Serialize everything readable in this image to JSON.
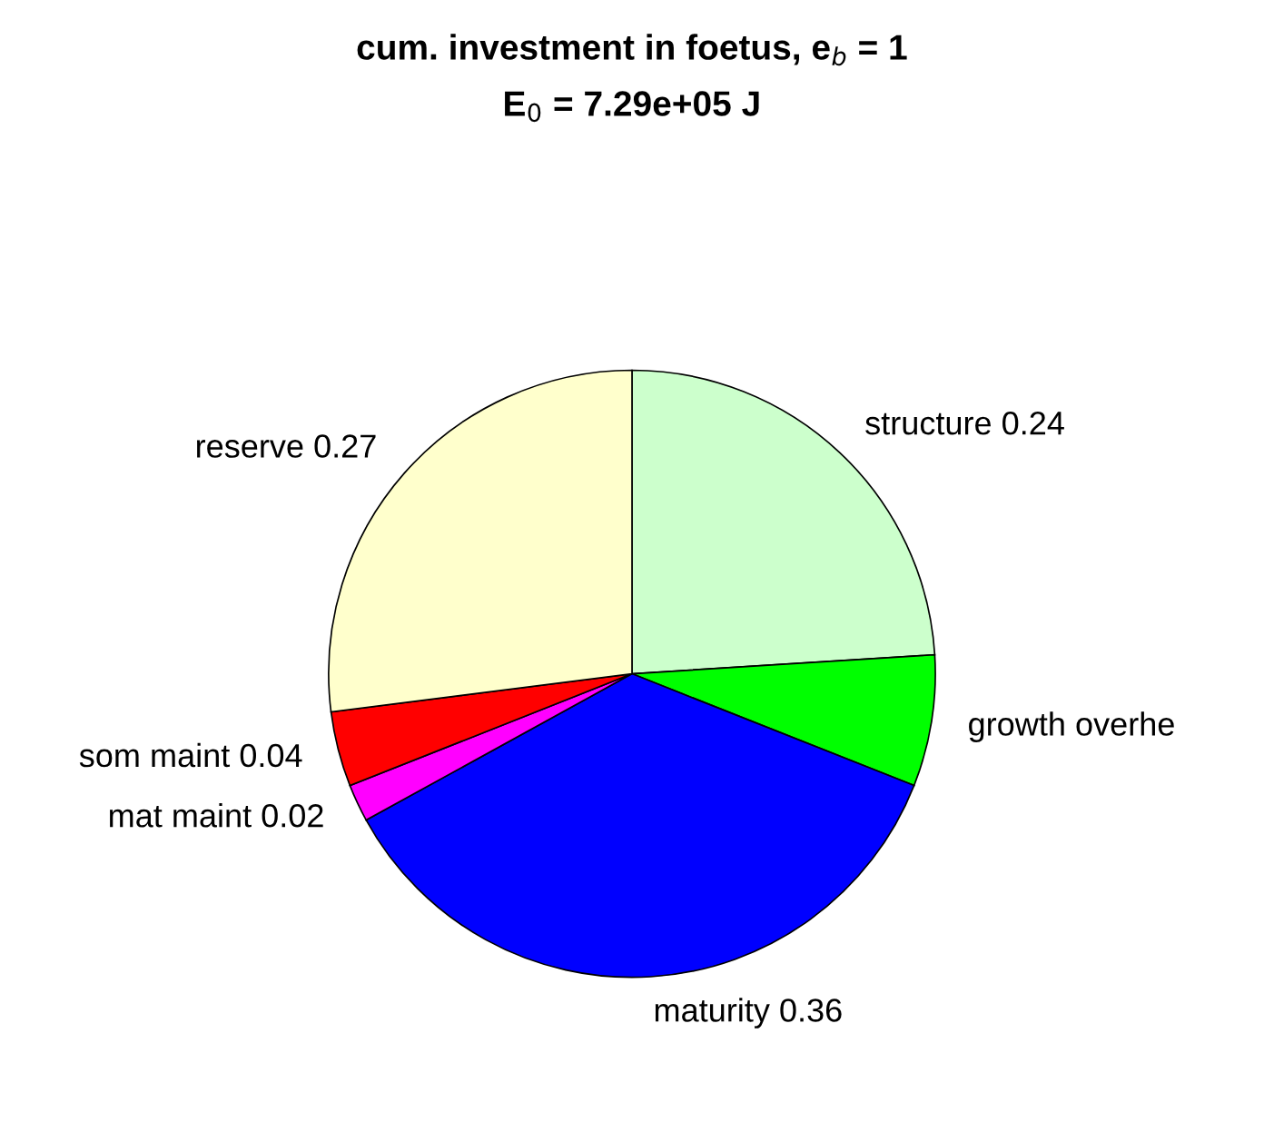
{
  "chart_data": {
    "type": "pie",
    "title": "cum. investment in foetus, e$_{b}$ = 1",
    "subtitle": "E$_{0}$ = 7.29e+05 J",
    "categories": [
      "structure 0.24",
      "growth overhe",
      "maturity 0.36",
      "mat maint 0.02",
      "som maint 0.04",
      "reserve 0.27"
    ],
    "values": [
      0.24,
      0.07,
      0.36,
      0.02,
      0.04,
      0.27
    ],
    "colors": [
      "#ccffcc",
      "#00ff00",
      "#0000ff",
      "#ff00ff",
      "#ff0000",
      "#ffffcc"
    ],
    "legend": false
  }
}
